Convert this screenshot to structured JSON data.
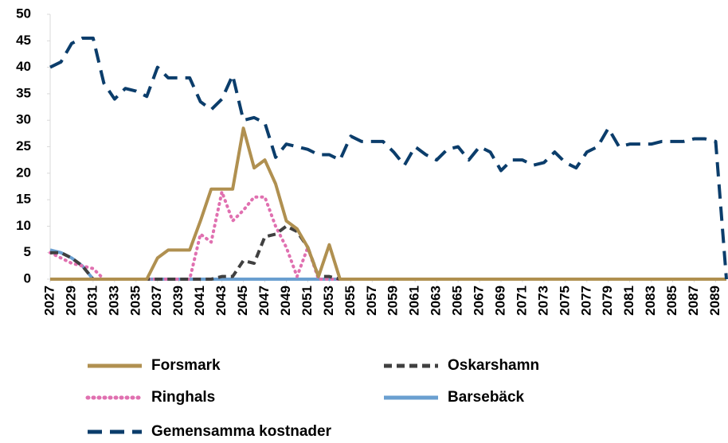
{
  "chart_data": {
    "type": "line",
    "x": [
      2027,
      2028,
      2029,
      2030,
      2031,
      2032,
      2033,
      2034,
      2035,
      2036,
      2037,
      2038,
      2039,
      2040,
      2041,
      2042,
      2043,
      2044,
      2045,
      2046,
      2047,
      2048,
      2049,
      2050,
      2051,
      2052,
      2053,
      2054,
      2055,
      2056,
      2057,
      2058,
      2059,
      2060,
      2061,
      2062,
      2063,
      2064,
      2065,
      2066,
      2067,
      2068,
      2069,
      2070,
      2071,
      2072,
      2073,
      2074,
      2075,
      2076,
      2077,
      2078,
      2079,
      2080,
      2081,
      2082,
      2083,
      2084,
      2085,
      2086,
      2087,
      2088,
      2089,
      2090
    ],
    "xlim": [
      2027,
      2090
    ],
    "xticks": [
      2027,
      2029,
      2031,
      2033,
      2035,
      2037,
      2039,
      2041,
      2043,
      2045,
      2047,
      2049,
      2051,
      2053,
      2055,
      2057,
      2059,
      2061,
      2063,
      2065,
      2067,
      2069,
      2071,
      2073,
      2075,
      2077,
      2079,
      2081,
      2083,
      2085,
      2087,
      2089
    ],
    "ylim": [
      0,
      50
    ],
    "yticks": [
      0,
      5,
      10,
      15,
      20,
      25,
      30,
      35,
      40,
      45,
      50
    ],
    "series": [
      {
        "name": "Gemensamma kostnader",
        "color": "#0b3d6b",
        "dash": "18 10",
        "values": [
          40,
          41,
          44.5,
          45.5,
          45.5,
          37,
          34,
          36,
          35.5,
          34.5,
          40,
          38,
          38,
          38,
          33.5,
          32,
          34,
          38.5,
          30,
          30.5,
          29.5,
          23,
          25.5,
          25,
          24.5,
          23.5,
          23.5,
          22.5,
          27,
          26,
          26,
          26,
          24,
          21.5,
          25,
          23.5,
          22.5,
          24.5,
          25,
          22.5,
          25,
          24,
          20.5,
          22.5,
          22.5,
          21.5,
          22,
          24,
          22,
          21,
          24,
          25,
          28.5,
          25,
          25.5,
          25.5,
          25.5,
          26,
          26,
          26,
          26.5,
          26.5,
          26,
          0
        ]
      },
      {
        "name": "Forsmark",
        "color": "#b09050",
        "dash": "none",
        "values": [
          0,
          0,
          0,
          0,
          0,
          0,
          0,
          0,
          0,
          0,
          4,
          5.5,
          5.5,
          5.5,
          11,
          17,
          17,
          17,
          28.5,
          21,
          22.5,
          18,
          11,
          9.5,
          6,
          0.5,
          6.5,
          0,
          0,
          0,
          0,
          0,
          0,
          0,
          0,
          0,
          0,
          0,
          0,
          0,
          0,
          0,
          0,
          0,
          0,
          0,
          0,
          0,
          0,
          0,
          0,
          0,
          0,
          0,
          0,
          0,
          0,
          0,
          0,
          0,
          0,
          0,
          0,
          0
        ]
      },
      {
        "name": "Oskarshamn",
        "color": "#404040",
        "dash": "10 6",
        "values": [
          5,
          5,
          4,
          2.5,
          0,
          0,
          0,
          0,
          0,
          0,
          0,
          0,
          0,
          0,
          0,
          0,
          0.5,
          0.5,
          3.5,
          3,
          8,
          8.5,
          10,
          9,
          6,
          0.5,
          0.5,
          0,
          0,
          0,
          0,
          0,
          0,
          0,
          0,
          0,
          0,
          0,
          0,
          0,
          0,
          0,
          0,
          0,
          0,
          0,
          0,
          0,
          0,
          0,
          0,
          0,
          0,
          0,
          0,
          0,
          0,
          0,
          0,
          0,
          0,
          0,
          0,
          0
        ]
      },
      {
        "name": "Ringhals",
        "color": "#e070b0",
        "dash": "1 6",
        "values": [
          5,
          4,
          3,
          2.5,
          2,
          0,
          0,
          0,
          0,
          0,
          0,
          0,
          0,
          0,
          8.5,
          7,
          16.5,
          11,
          13,
          15.5,
          15.5,
          10,
          6,
          0.5,
          6,
          0,
          0,
          0,
          0,
          0,
          0,
          0,
          0,
          0,
          0,
          0,
          0,
          0,
          0,
          0,
          0,
          0,
          0,
          0,
          0,
          0,
          0,
          0,
          0,
          0,
          0,
          0,
          0,
          0,
          0,
          0,
          0,
          0,
          0,
          0,
          0,
          0,
          0,
          0
        ]
      },
      {
        "name": "Barsebäck",
        "color": "#6a9fd0",
        "dash": "none",
        "values": [
          5.5,
          5,
          4,
          2.5,
          0,
          0,
          0,
          0,
          0,
          0,
          0,
          0,
          0,
          0,
          0,
          0,
          0,
          0,
          0,
          0,
          0,
          0,
          0,
          0,
          0,
          0,
          0,
          0,
          0,
          0,
          0,
          0,
          0,
          0,
          0,
          0,
          0,
          0,
          0,
          0,
          0,
          0,
          0,
          0,
          0,
          0,
          0,
          0,
          0,
          0,
          0,
          0,
          0,
          0,
          0,
          0,
          0,
          0,
          0,
          0,
          0,
          0,
          0,
          0
        ]
      }
    ]
  }
}
